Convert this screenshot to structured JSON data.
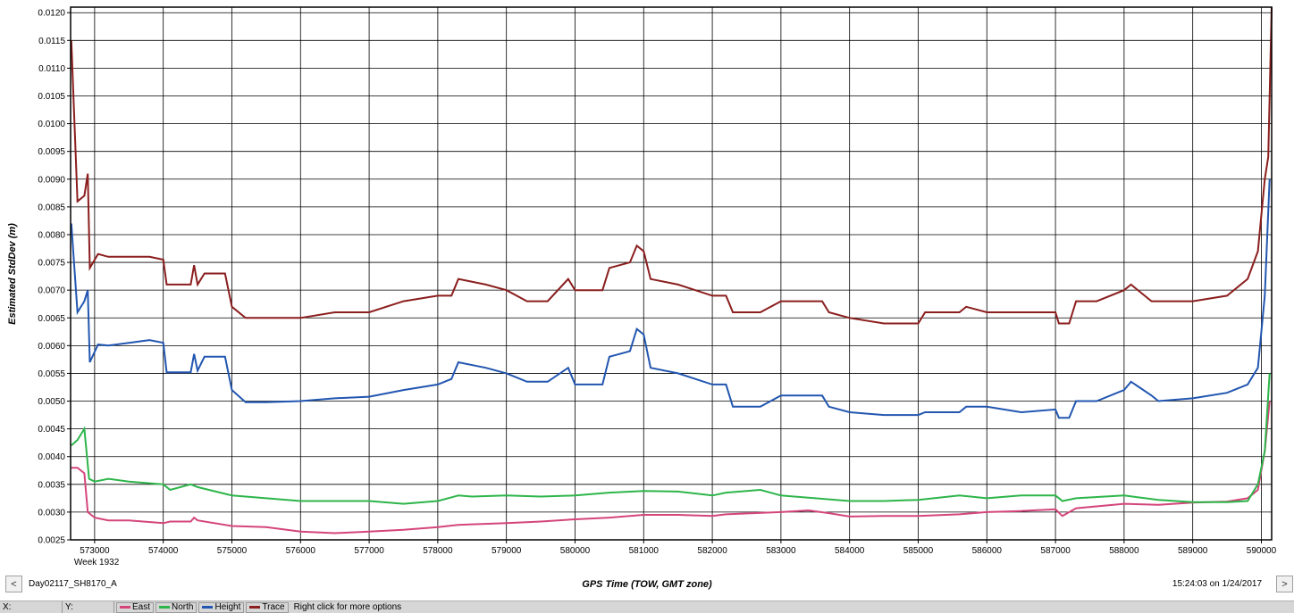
{
  "chart_data": {
    "type": "line",
    "title": "",
    "xlabel": "GPS Time (TOW, GMT zone)",
    "ylabel": "Estimated StdDev (m)",
    "xlim": [
      572650,
      590150
    ],
    "ylim": [
      0.0025,
      0.0121
    ],
    "x_ticks": [
      573000,
      574000,
      575000,
      576000,
      577000,
      578000,
      579000,
      580000,
      581000,
      582000,
      583000,
      584000,
      585000,
      586000,
      587000,
      588000,
      589000,
      590000
    ],
    "x_tick_labels": [
      "573000",
      "574000",
      "575000",
      "576000",
      "577000",
      "578000",
      "579000",
      "580000",
      "581000",
      "582000",
      "583000",
      "584000",
      "585000",
      "586000",
      "587000",
      "588000",
      "589000",
      "590000"
    ],
    "x_sublabel": "Week 1932",
    "y_ticks": [
      0.0025,
      0.003,
      0.0035,
      0.004,
      0.0045,
      0.005,
      0.0055,
      0.006,
      0.0065,
      0.007,
      0.0075,
      0.008,
      0.0085,
      0.009,
      0.0095,
      0.01,
      0.0105,
      0.011,
      0.0115,
      0.012
    ],
    "y_tick_labels": [
      "0.0025",
      "0.0030",
      "0.0035",
      "0.0040",
      "0.0045",
      "0.0050",
      "0.0055",
      "0.0060",
      "0.0065",
      "0.0070",
      "0.0075",
      "0.0080",
      "0.0085",
      "0.0090",
      "0.0095",
      "0.0100",
      "0.0105",
      "0.0110",
      "0.0115",
      "0.0120"
    ],
    "grid": true,
    "legend_position": "bottom status bar",
    "series": [
      {
        "name": "East",
        "color": "#d4457a",
        "points": [
          [
            572660,
            0.0038
          ],
          [
            572750,
            0.0038
          ],
          [
            572850,
            0.0037
          ],
          [
            572900,
            0.003
          ],
          [
            573000,
            0.0029
          ],
          [
            573200,
            0.00285
          ],
          [
            573500,
            0.00285
          ],
          [
            574000,
            0.0028
          ],
          [
            574100,
            0.00283
          ],
          [
            574400,
            0.00283
          ],
          [
            574450,
            0.0029
          ],
          [
            574500,
            0.00285
          ],
          [
            575000,
            0.00275
          ],
          [
            575500,
            0.00273
          ],
          [
            576000,
            0.00265
          ],
          [
            576500,
            0.00262
          ],
          [
            577000,
            0.00265
          ],
          [
            577500,
            0.00268
          ],
          [
            578000,
            0.00273
          ],
          [
            578300,
            0.00277
          ],
          [
            578500,
            0.00278
          ],
          [
            579000,
            0.0028
          ],
          [
            579500,
            0.00283
          ],
          [
            580000,
            0.00287
          ],
          [
            580500,
            0.0029
          ],
          [
            581000,
            0.00295
          ],
          [
            581500,
            0.00295
          ],
          [
            582000,
            0.00293
          ],
          [
            582200,
            0.00296
          ],
          [
            583000,
            0.003
          ],
          [
            583400,
            0.00303
          ],
          [
            583700,
            0.00298
          ],
          [
            584000,
            0.00292
          ],
          [
            584500,
            0.00293
          ],
          [
            585000,
            0.00293
          ],
          [
            585600,
            0.00296
          ],
          [
            586000,
            0.003
          ],
          [
            586500,
            0.00302
          ],
          [
            587000,
            0.00305
          ],
          [
            587100,
            0.00293
          ],
          [
            587300,
            0.00307
          ],
          [
            588000,
            0.00315
          ],
          [
            588500,
            0.00313
          ],
          [
            589000,
            0.00317
          ],
          [
            589500,
            0.00319
          ],
          [
            589800,
            0.00325
          ],
          [
            589950,
            0.0034
          ],
          [
            590050,
            0.0041
          ],
          [
            590120,
            0.005
          ]
        ]
      },
      {
        "name": "North",
        "color": "#2db54a",
        "points": [
          [
            572660,
            0.0042
          ],
          [
            572750,
            0.0043
          ],
          [
            572850,
            0.0045
          ],
          [
            572920,
            0.0036
          ],
          [
            573000,
            0.00355
          ],
          [
            573200,
            0.0036
          ],
          [
            573500,
            0.00355
          ],
          [
            574000,
            0.0035
          ],
          [
            574100,
            0.0034
          ],
          [
            574400,
            0.0035
          ],
          [
            574500,
            0.00345
          ],
          [
            575000,
            0.0033
          ],
          [
            575500,
            0.00325
          ],
          [
            576000,
            0.0032
          ],
          [
            576500,
            0.0032
          ],
          [
            577000,
            0.0032
          ],
          [
            577500,
            0.00315
          ],
          [
            578000,
            0.0032
          ],
          [
            578300,
            0.0033
          ],
          [
            578500,
            0.00328
          ],
          [
            579000,
            0.0033
          ],
          [
            579500,
            0.00328
          ],
          [
            580000,
            0.0033
          ],
          [
            580500,
            0.00335
          ],
          [
            581000,
            0.00338
          ],
          [
            581500,
            0.00337
          ],
          [
            582000,
            0.0033
          ],
          [
            582200,
            0.00335
          ],
          [
            582700,
            0.0034
          ],
          [
            583000,
            0.0033
          ],
          [
            583500,
            0.00325
          ],
          [
            584000,
            0.0032
          ],
          [
            584500,
            0.0032
          ],
          [
            585000,
            0.00322
          ],
          [
            585600,
            0.0033
          ],
          [
            586000,
            0.00325
          ],
          [
            586500,
            0.0033
          ],
          [
            587000,
            0.0033
          ],
          [
            587100,
            0.0032
          ],
          [
            587300,
            0.00325
          ],
          [
            588000,
            0.0033
          ],
          [
            588500,
            0.00322
          ],
          [
            589000,
            0.00318
          ],
          [
            589500,
            0.00318
          ],
          [
            589800,
            0.0032
          ],
          [
            589950,
            0.0035
          ],
          [
            590050,
            0.0041
          ],
          [
            590120,
            0.0055
          ]
        ]
      },
      {
        "name": "Height",
        "color": "#2256b0",
        "points": [
          [
            572660,
            0.0082
          ],
          [
            572750,
            0.0066
          ],
          [
            572850,
            0.0068
          ],
          [
            572900,
            0.007
          ],
          [
            572930,
            0.0057
          ],
          [
            573050,
            0.00602
          ],
          [
            573200,
            0.006
          ],
          [
            573500,
            0.00605
          ],
          [
            573800,
            0.0061
          ],
          [
            574000,
            0.00605
          ],
          [
            574050,
            0.00552
          ],
          [
            574400,
            0.00552
          ],
          [
            574450,
            0.00585
          ],
          [
            574500,
            0.00555
          ],
          [
            574600,
            0.0058
          ],
          [
            574900,
            0.0058
          ],
          [
            575000,
            0.0052
          ],
          [
            575200,
            0.00498
          ],
          [
            575500,
            0.00498
          ],
          [
            576000,
            0.005
          ],
          [
            576500,
            0.00505
          ],
          [
            577000,
            0.00508
          ],
          [
            577500,
            0.0052
          ],
          [
            578000,
            0.0053
          ],
          [
            578200,
            0.0054
          ],
          [
            578300,
            0.0057
          ],
          [
            578700,
            0.0056
          ],
          [
            579000,
            0.0055
          ],
          [
            579300,
            0.00535
          ],
          [
            579600,
            0.00535
          ],
          [
            579900,
            0.0056
          ],
          [
            580000,
            0.0053
          ],
          [
            580400,
            0.0053
          ],
          [
            580500,
            0.0058
          ],
          [
            580800,
            0.0059
          ],
          [
            580900,
            0.0063
          ],
          [
            581000,
            0.0062
          ],
          [
            581100,
            0.0056
          ],
          [
            581500,
            0.0055
          ],
          [
            582000,
            0.0053
          ],
          [
            582200,
            0.0053
          ],
          [
            582300,
            0.0049
          ],
          [
            582700,
            0.0049
          ],
          [
            583000,
            0.0051
          ],
          [
            583600,
            0.0051
          ],
          [
            583700,
            0.0049
          ],
          [
            584000,
            0.0048
          ],
          [
            584500,
            0.00475
          ],
          [
            585000,
            0.00475
          ],
          [
            585100,
            0.0048
          ],
          [
            585600,
            0.0048
          ],
          [
            585700,
            0.0049
          ],
          [
            586000,
            0.0049
          ],
          [
            586500,
            0.0048
          ],
          [
            587000,
            0.00485
          ],
          [
            587050,
            0.0047
          ],
          [
            587200,
            0.0047
          ],
          [
            587300,
            0.005
          ],
          [
            587600,
            0.005
          ],
          [
            588000,
            0.0052
          ],
          [
            588100,
            0.00535
          ],
          [
            588400,
            0.0051
          ],
          [
            588500,
            0.005
          ],
          [
            589000,
            0.00505
          ],
          [
            589500,
            0.00515
          ],
          [
            589800,
            0.0053
          ],
          [
            589950,
            0.0056
          ],
          [
            590050,
            0.0069
          ],
          [
            590120,
            0.009
          ]
        ]
      },
      {
        "name": "Trace",
        "color": "#8b1e1e",
        "points": [
          [
            572660,
            0.0115
          ],
          [
            572750,
            0.0086
          ],
          [
            572850,
            0.0087
          ],
          [
            572900,
            0.0091
          ],
          [
            572930,
            0.0074
          ],
          [
            573050,
            0.00765
          ],
          [
            573200,
            0.0076
          ],
          [
            573500,
            0.0076
          ],
          [
            573800,
            0.0076
          ],
          [
            574000,
            0.00755
          ],
          [
            574050,
            0.0071
          ],
          [
            574400,
            0.0071
          ],
          [
            574450,
            0.00745
          ],
          [
            574500,
            0.0071
          ],
          [
            574600,
            0.0073
          ],
          [
            574900,
            0.0073
          ],
          [
            575000,
            0.0067
          ],
          [
            575200,
            0.0065
          ],
          [
            575500,
            0.0065
          ],
          [
            576000,
            0.0065
          ],
          [
            576500,
            0.0066
          ],
          [
            577000,
            0.0066
          ],
          [
            577500,
            0.0068
          ],
          [
            578000,
            0.0069
          ],
          [
            578200,
            0.0069
          ],
          [
            578300,
            0.0072
          ],
          [
            578700,
            0.0071
          ],
          [
            579000,
            0.007
          ],
          [
            579300,
            0.0068
          ],
          [
            579600,
            0.0068
          ],
          [
            579900,
            0.0072
          ],
          [
            580000,
            0.007
          ],
          [
            580400,
            0.007
          ],
          [
            580500,
            0.0074
          ],
          [
            580800,
            0.0075
          ],
          [
            580900,
            0.0078
          ],
          [
            581000,
            0.0077
          ],
          [
            581100,
            0.0072
          ],
          [
            581500,
            0.0071
          ],
          [
            582000,
            0.0069
          ],
          [
            582200,
            0.0069
          ],
          [
            582300,
            0.0066
          ],
          [
            582700,
            0.0066
          ],
          [
            583000,
            0.0068
          ],
          [
            583600,
            0.0068
          ],
          [
            583700,
            0.0066
          ],
          [
            584000,
            0.0065
          ],
          [
            584500,
            0.0064
          ],
          [
            585000,
            0.0064
          ],
          [
            585100,
            0.0066
          ],
          [
            585600,
            0.0066
          ],
          [
            585700,
            0.0067
          ],
          [
            586000,
            0.0066
          ],
          [
            586500,
            0.0066
          ],
          [
            587000,
            0.0066
          ],
          [
            587050,
            0.0064
          ],
          [
            587200,
            0.0064
          ],
          [
            587300,
            0.0068
          ],
          [
            587600,
            0.0068
          ],
          [
            588000,
            0.007
          ],
          [
            588100,
            0.0071
          ],
          [
            588400,
            0.0068
          ],
          [
            588500,
            0.0068
          ],
          [
            589000,
            0.0068
          ],
          [
            589500,
            0.0069
          ],
          [
            589800,
            0.0072
          ],
          [
            589950,
            0.0077
          ],
          [
            590050,
            0.009
          ],
          [
            590100,
            0.0094
          ],
          [
            590150,
            0.0121
          ]
        ]
      }
    ]
  },
  "bottom": {
    "dataset_name": "Day02117_SH8170_A",
    "x_axis_title": "GPS Time (TOW, GMT zone)",
    "timestamp": "15:24:03 on 1/24/2017",
    "prev_symbol": "<",
    "next_symbol": ">"
  },
  "status_bar": {
    "x_label": "X:",
    "y_label": "Y:",
    "hint": "Right click for more options",
    "legend": [
      {
        "name": "East",
        "color": "#d4457a"
      },
      {
        "name": "North",
        "color": "#2db54a"
      },
      {
        "name": "Height",
        "color": "#2256b0"
      },
      {
        "name": "Trace",
        "color": "#8b1e1e"
      }
    ]
  }
}
